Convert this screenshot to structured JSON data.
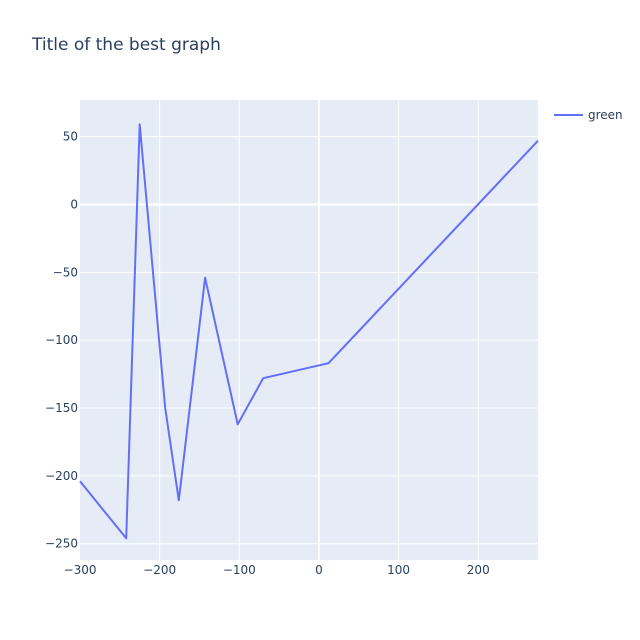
{
  "chart_data": {
    "type": "line",
    "title": "Title of the best graph",
    "xlabel": "",
    "ylabel": "",
    "xlim": [
      -300,
      275
    ],
    "ylim": [
      -262,
      77
    ],
    "grid": true,
    "legend_position": "top-right",
    "x_ticks": [
      -300,
      -200,
      -100,
      0,
      100,
      200
    ],
    "x_tick_labels": [
      "−300",
      "−200",
      "−100",
      "0",
      "100",
      "200"
    ],
    "y_ticks": [
      50,
      0,
      -50,
      -100,
      -150,
      -200,
      -250
    ],
    "y_tick_labels": [
      "50",
      "0",
      "−50",
      "−100",
      "−150",
      "−200",
      "−250"
    ],
    "series": [
      {
        "name": "green",
        "color": "#636efa",
        "x": [
          -300,
          -242,
          -225,
          -193,
          -176,
          -143,
          -102,
          -70,
          12,
          275
        ],
        "y": [
          -204,
          -246,
          59,
          -150,
          -218,
          -54,
          -162,
          -128,
          -117,
          47
        ]
      }
    ]
  },
  "colors": {
    "plot_background": "#e5ecf6",
    "grid": "#ffffff",
    "text": "#2a3f5f"
  }
}
